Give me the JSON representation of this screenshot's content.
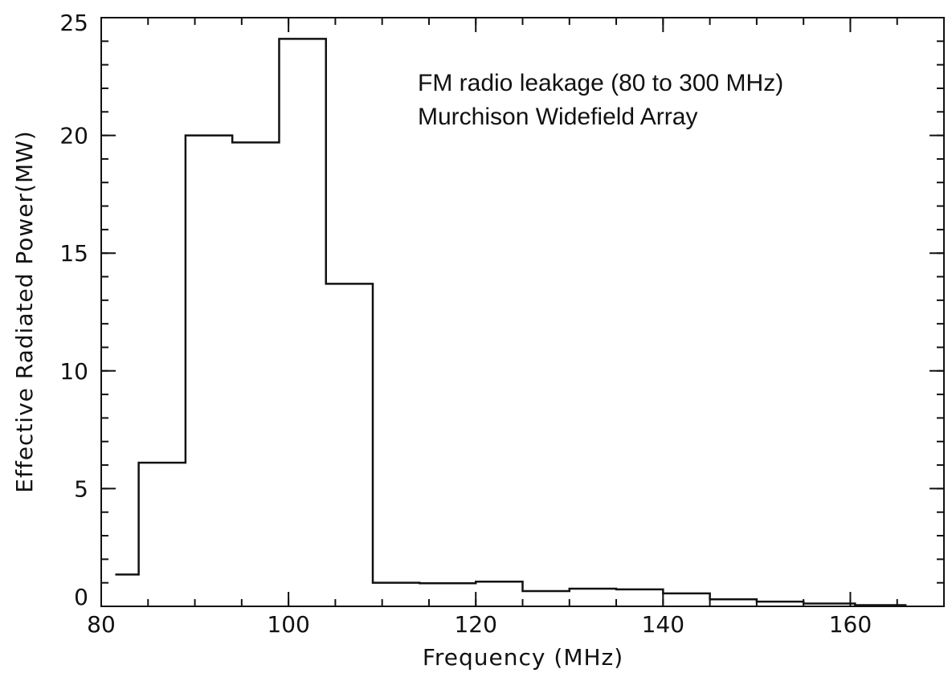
{
  "chart_data": {
    "type": "step",
    "title": "",
    "annotations": [
      "FM radio leakage (80 to 300 MHz)",
      "Murchison Widefield Array"
    ],
    "xlabel": "Frequency (MHz)",
    "ylabel": "Effective Radiated Power(MW)",
    "xlim": [
      80,
      170
    ],
    "ylim": [
      0,
      25
    ],
    "xticks": [
      80,
      100,
      120,
      140,
      160
    ],
    "yticks": [
      0,
      5,
      10,
      15,
      20,
      25
    ],
    "x_minor_step": 5,
    "y_minor_step": 1,
    "grid": false,
    "legend": "none",
    "bins": [
      {
        "x0": 81.5,
        "x1": 84,
        "value": 1.35
      },
      {
        "x0": 84,
        "x1": 89,
        "value": 6.1
      },
      {
        "x0": 89,
        "x1": 94,
        "value": 20.0
      },
      {
        "x0": 94,
        "x1": 99,
        "value": 19.7
      },
      {
        "x0": 99,
        "x1": 104,
        "value": 24.1
      },
      {
        "x0": 104,
        "x1": 109,
        "value": 13.7
      },
      {
        "x0": 109,
        "x1": 114,
        "value": 1.0
      },
      {
        "x0": 114,
        "x1": 120,
        "value": 0.98
      },
      {
        "x0": 120,
        "x1": 125,
        "value": 1.05
      },
      {
        "x0": 125,
        "x1": 130,
        "value": 0.65
      },
      {
        "x0": 130,
        "x1": 135,
        "value": 0.75
      },
      {
        "x0": 135,
        "x1": 140,
        "value": 0.72
      },
      {
        "x0": 140,
        "x1": 145,
        "value": 0.55
      },
      {
        "x0": 145,
        "x1": 150,
        "value": 0.3
      },
      {
        "x0": 150,
        "x1": 155,
        "value": 0.2
      },
      {
        "x0": 155,
        "x1": 160.5,
        "value": 0.12
      },
      {
        "x0": 160.5,
        "x1": 166,
        "value": 0.05
      }
    ],
    "colors": {
      "line": "#111111",
      "frame": "#111111",
      "background": "#ffffff"
    }
  }
}
